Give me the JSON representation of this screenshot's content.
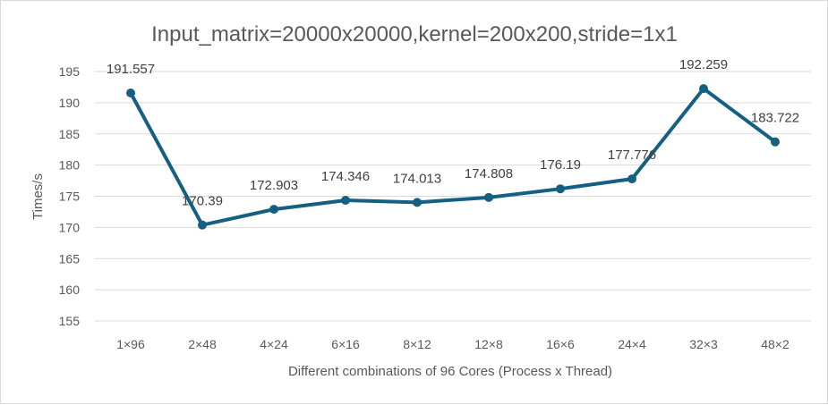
{
  "chart_data": {
    "type": "line",
    "title": "Input_matrix=20000x20000,kernel=200x200,stride=1x1",
    "xlabel": "Different combinations of 96 Cores (Process x Thread)",
    "ylabel": "Times/s",
    "categories": [
      "1×96",
      "2×48",
      "4×24",
      "6×16",
      "8×12",
      "12×8",
      "16×6",
      "24×4",
      "32×3",
      "48×2"
    ],
    "series": [
      {
        "values": [
          191.557,
          170.39,
          172.903,
          174.346,
          174.013,
          174.808,
          176.19,
          177.776,
          192.259,
          183.722
        ],
        "data_labels": [
          "191.557",
          "170.39",
          "172.903",
          "174.346",
          "174.013",
          "174.808",
          "176.19",
          "177.776",
          "192.259",
          "183.722"
        ]
      }
    ],
    "ylim": [
      155,
      195
    ],
    "yticks": [
      155,
      160,
      165,
      170,
      175,
      180,
      185,
      190,
      195
    ],
    "grid": true,
    "legend": "none",
    "colors": {
      "series": "#156082",
      "grid": "#d9d9d9",
      "text": "#595959"
    }
  }
}
